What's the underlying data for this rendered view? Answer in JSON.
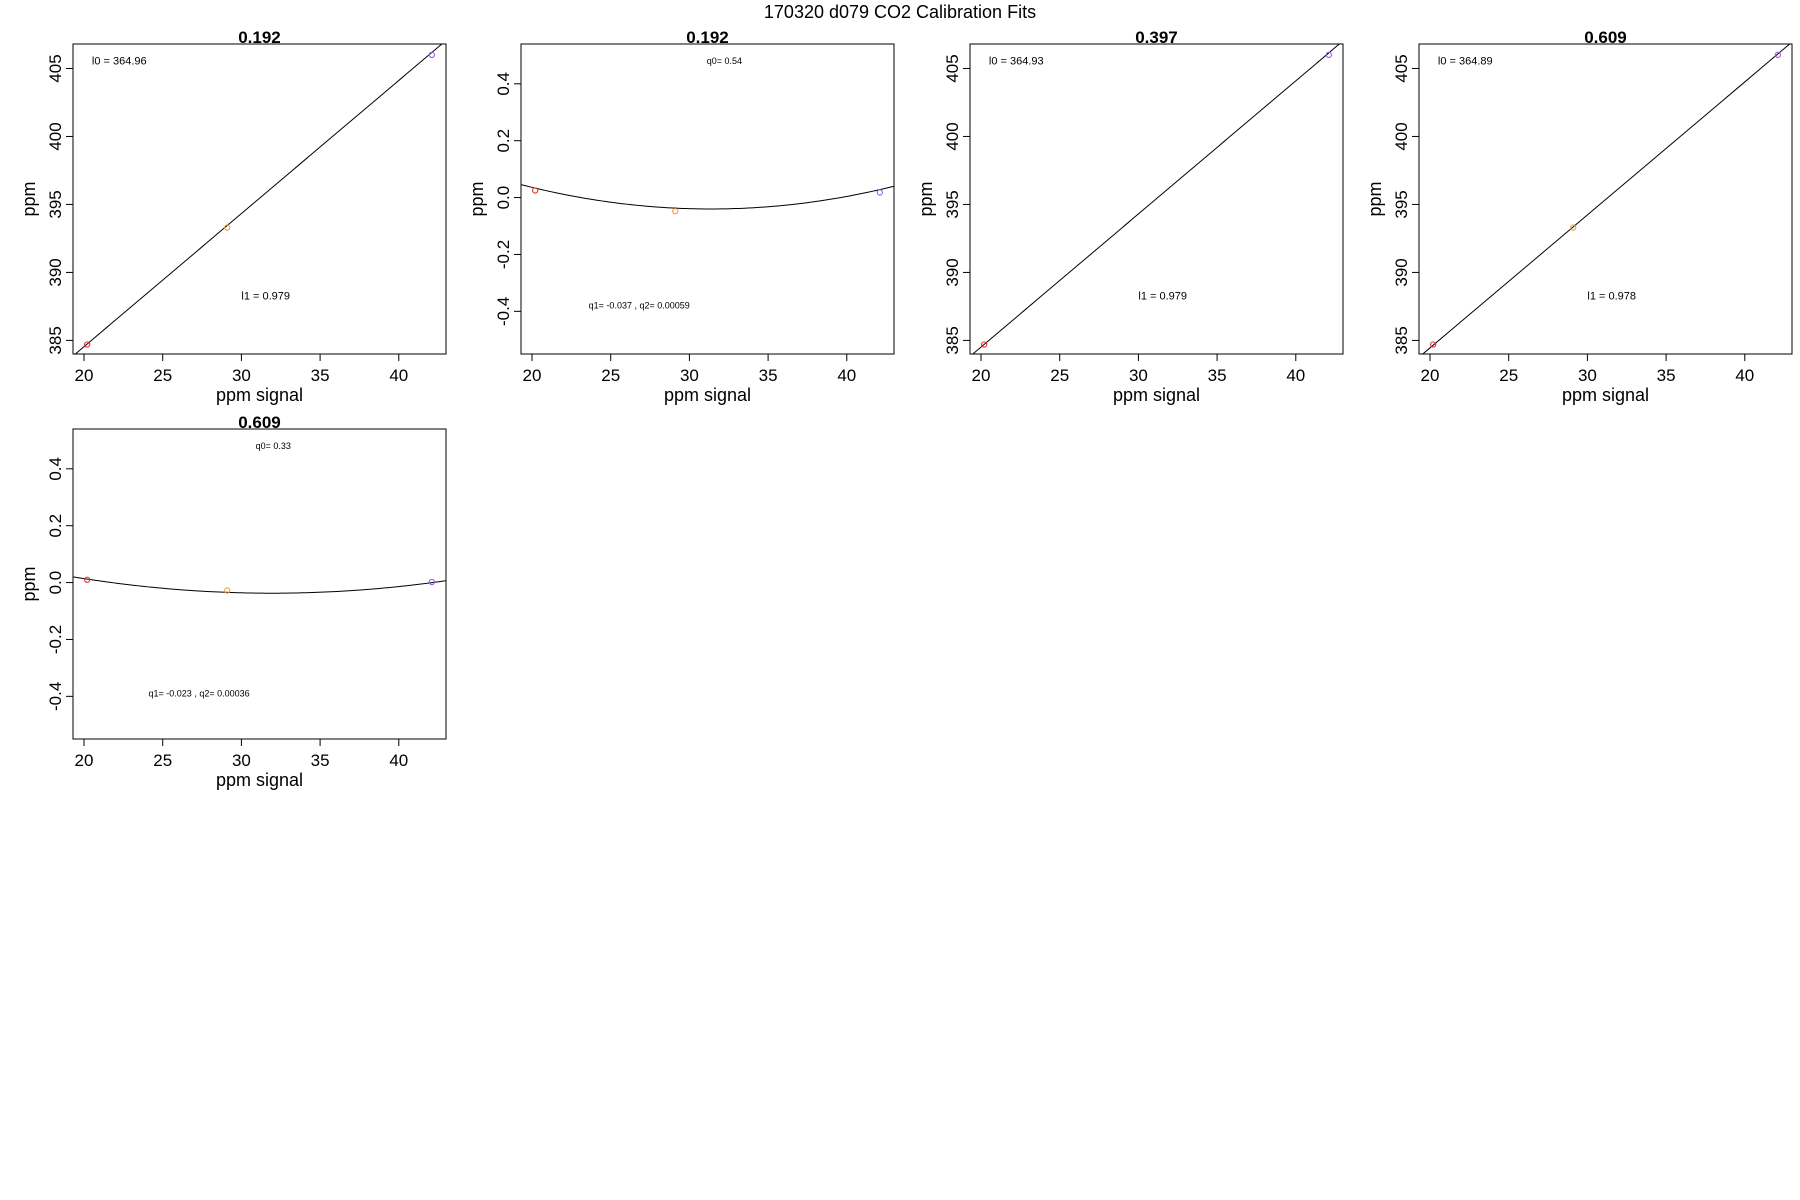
{
  "figure": {
    "title": "170320   d079   CO2 Calibration Fits"
  },
  "chart_data": [
    {
      "type": "scatter",
      "title": "0.192",
      "xlabel": "ppm signal",
      "ylabel": "ppm",
      "xlim": [
        19.3,
        43.0
      ],
      "ylim": [
        384.0,
        406.8
      ],
      "xticks": [
        "20",
        "25",
        "30",
        "35",
        "40"
      ],
      "yticks": [
        "385",
        "390",
        "395",
        "400",
        "405"
      ],
      "points": [
        {
          "x": 20.2,
          "y": 384.7,
          "color": "#e0302a"
        },
        {
          "x": 29.1,
          "y": 393.3,
          "color": "#f0a030"
        },
        {
          "x": 42.1,
          "y": 406.0,
          "color": "#9a5ae0"
        }
      ],
      "fit": {
        "kind": "linear",
        "l0": 364.96,
        "l1": 0.979
      },
      "annotations": [
        {
          "text": "l0 =  364.96",
          "x": 20.5,
          "y": 405.3,
          "size": "annot"
        },
        {
          "text": "l1 =  0.979",
          "x": 30.0,
          "y": 388.0,
          "size": "annot"
        }
      ]
    },
    {
      "type": "scatter",
      "title": "0.192",
      "xlabel": "ppm signal",
      "ylabel": "ppm",
      "xlim": [
        19.3,
        43.0
      ],
      "ylim": [
        -0.55,
        0.54
      ],
      "xticks": [
        "20",
        "25",
        "30",
        "35",
        "40"
      ],
      "yticks": [
        "-0.4",
        "-0.2",
        "0.0",
        "0.2",
        "0.4"
      ],
      "points": [
        {
          "x": 20.2,
          "y": 0.025,
          "color": "#e0302a"
        },
        {
          "x": 29.1,
          "y": -0.048,
          "color": "#f0a030"
        },
        {
          "x": 42.1,
          "y": 0.018,
          "color": "#9a5ae0"
        }
      ],
      "fit": {
        "kind": "quadratic",
        "q0": 0.54,
        "q1": -0.037,
        "q2": 0.00059
      },
      "annotations": [
        {
          "text": "q0= 0.54",
          "x": 31.1,
          "y": 0.47,
          "size": "annot-small"
        },
        {
          "text": "q1= -0.037 , q2= 0.00059",
          "x": 23.6,
          "y": -0.39,
          "size": "annot-small"
        }
      ]
    },
    {
      "type": "scatter",
      "title": "0.397",
      "xlabel": "ppm signal",
      "ylabel": "ppm",
      "xlim": [
        19.3,
        43.0
      ],
      "ylim": [
        384.0,
        406.8
      ],
      "xticks": [
        "20",
        "25",
        "30",
        "35",
        "40"
      ],
      "yticks": [
        "385",
        "390",
        "395",
        "400",
        "405"
      ],
      "points": [
        {
          "x": 20.2,
          "y": 384.7,
          "color": "#e0302a"
        },
        {
          "x": 42.1,
          "y": 406.0,
          "color": "#9a5ae0"
        }
      ],
      "fit": {
        "kind": "linear",
        "l0": 364.93,
        "l1": 0.979
      },
      "annotations": [
        {
          "text": "l0 =  364.93",
          "x": 20.5,
          "y": 405.3,
          "size": "annot"
        },
        {
          "text": "l1 =  0.979",
          "x": 30.0,
          "y": 388.0,
          "size": "annot"
        }
      ]
    },
    {
      "type": "scatter",
      "title": "0.609",
      "xlabel": "ppm signal",
      "ylabel": "ppm",
      "xlim": [
        19.3,
        43.0
      ],
      "ylim": [
        384.0,
        406.8
      ],
      "xticks": [
        "20",
        "25",
        "30",
        "35",
        "40"
      ],
      "yticks": [
        "385",
        "390",
        "395",
        "400",
        "405"
      ],
      "points": [
        {
          "x": 20.2,
          "y": 384.7,
          "color": "#e0302a"
        },
        {
          "x": 29.1,
          "y": 393.3,
          "color": "#f0a030"
        },
        {
          "x": 42.1,
          "y": 406.0,
          "color": "#9a5ae0"
        }
      ],
      "fit": {
        "kind": "linear",
        "l0": 364.89,
        "l1": 0.978
      },
      "annotations": [
        {
          "text": "l0 =  364.89",
          "x": 20.5,
          "y": 405.3,
          "size": "annot"
        },
        {
          "text": "l1 =  0.978",
          "x": 30.0,
          "y": 388.0,
          "size": "annot"
        }
      ]
    },
    {
      "type": "scatter",
      "title": "0.609",
      "xlabel": "ppm signal",
      "ylabel": "ppm",
      "xlim": [
        19.3,
        43.0
      ],
      "ylim": [
        -0.55,
        0.54
      ],
      "xticks": [
        "20",
        "25",
        "30",
        "35",
        "40"
      ],
      "yticks": [
        "-0.4",
        "-0.2",
        "0.0",
        "0.2",
        "0.4"
      ],
      "points": [
        {
          "x": 20.2,
          "y": 0.01,
          "color": "#e0302a"
        },
        {
          "x": 29.1,
          "y": -0.028,
          "color": "#f0a030"
        },
        {
          "x": 42.1,
          "y": 0.002,
          "color": "#9a5ae0"
        }
      ],
      "fit": {
        "kind": "quadratic",
        "q0": 0.33,
        "q1": -0.023,
        "q2": 0.00036
      },
      "annotations": [
        {
          "text": "q0= 0.33",
          "x": 30.9,
          "y": 0.47,
          "size": "annot-small"
        },
        {
          "text": "q1= -0.023 , q2= 0.00036",
          "x": 24.1,
          "y": -0.4,
          "size": "annot-small"
        }
      ]
    }
  ]
}
